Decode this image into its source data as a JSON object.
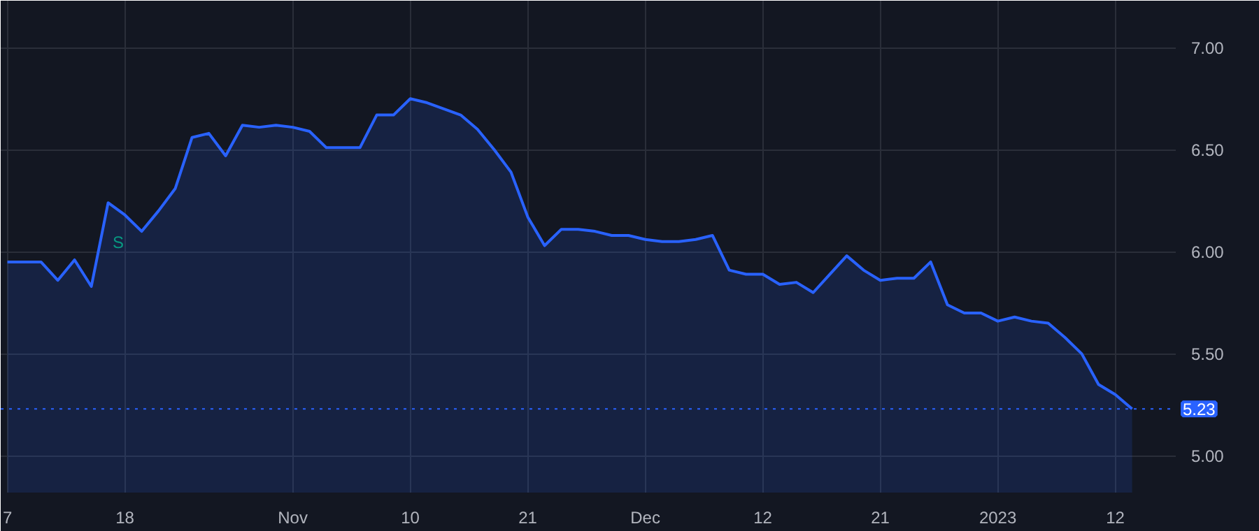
{
  "chart_data": {
    "type": "area",
    "categories": [
      "7",
      null,
      null,
      null,
      null,
      null,
      null,
      "18",
      null,
      null,
      null,
      null,
      null,
      null,
      null,
      null,
      null,
      "Nov",
      null,
      null,
      null,
      null,
      null,
      null,
      "10",
      null,
      null,
      null,
      null,
      null,
      null,
      "21",
      null,
      null,
      null,
      null,
      null,
      null,
      "Dec",
      null,
      null,
      null,
      null,
      null,
      null,
      "12",
      null,
      null,
      null,
      null,
      null,
      null,
      "21",
      null,
      null,
      null,
      null,
      null,
      null,
      "2023",
      null,
      null,
      null,
      null,
      null,
      null,
      "12",
      null
    ],
    "series": [
      {
        "color": "#2962ff",
        "values": [
          5.95,
          5.95,
          5.95,
          5.86,
          5.96,
          5.83,
          6.24,
          6.18,
          6.1,
          6.2,
          6.31,
          6.56,
          6.58,
          6.47,
          6.62,
          6.61,
          6.62,
          6.61,
          6.59,
          6.51,
          6.51,
          6.51,
          6.67,
          6.67,
          6.75,
          6.73,
          6.7,
          6.67,
          6.6,
          6.5,
          6.39,
          6.17,
          6.03,
          6.11,
          6.11,
          6.1,
          6.08,
          6.08,
          6.06,
          6.05,
          6.05,
          6.06,
          6.08,
          5.91,
          5.89,
          5.89,
          5.84,
          5.85,
          5.8,
          5.89,
          5.98,
          5.91,
          5.86,
          5.87,
          5.87,
          5.95,
          5.74,
          5.7,
          5.7,
          5.66,
          5.68,
          5.66,
          5.65,
          5.58,
          5.5,
          5.35,
          5.3,
          5.23
        ]
      }
    ],
    "ylim": [
      4.82,
      7.23
    ],
    "yticks": [
      {
        "value": 5,
        "label": "5.00"
      },
      {
        "value": 5.5,
        "label": "5.50"
      },
      {
        "value": 6,
        "label": "6.00"
      },
      {
        "value": 6.5,
        "label": "6.50"
      },
      {
        "value": 7,
        "label": "7.00"
      }
    ],
    "ref_lines": [
      {
        "axis": "y",
        "value": 5.23,
        "label": "5.23",
        "color": "#2962ff",
        "line_style": "dotted"
      }
    ],
    "annotations": [
      "S"
    ],
    "grid": true,
    "marker": "none",
    "line_style": "solid"
  }
}
